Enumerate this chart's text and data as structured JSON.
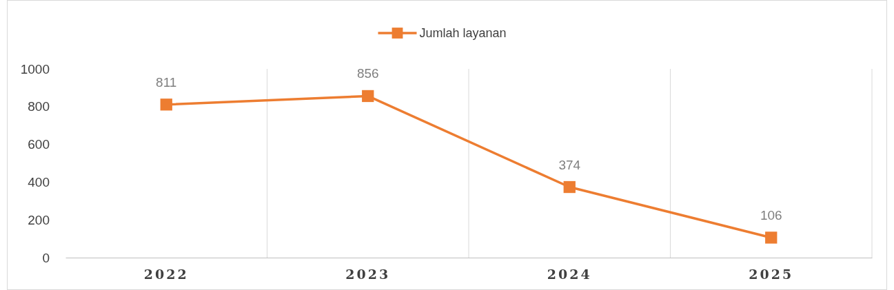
{
  "chart_data": {
    "type": "line",
    "categories": [
      "2022",
      "2023",
      "2024",
      "2025"
    ],
    "series": [
      {
        "name": "Jumlah layanan",
        "color": "#ed7d31",
        "values": [
          811,
          856,
          374,
          106
        ]
      }
    ],
    "ylim": [
      0,
      1000
    ],
    "yticks": [
      0,
      200,
      400,
      600,
      800,
      1000
    ],
    "grid": "x",
    "legend": "top",
    "marker": "square",
    "line_style": "solid",
    "data_labels": true
  }
}
